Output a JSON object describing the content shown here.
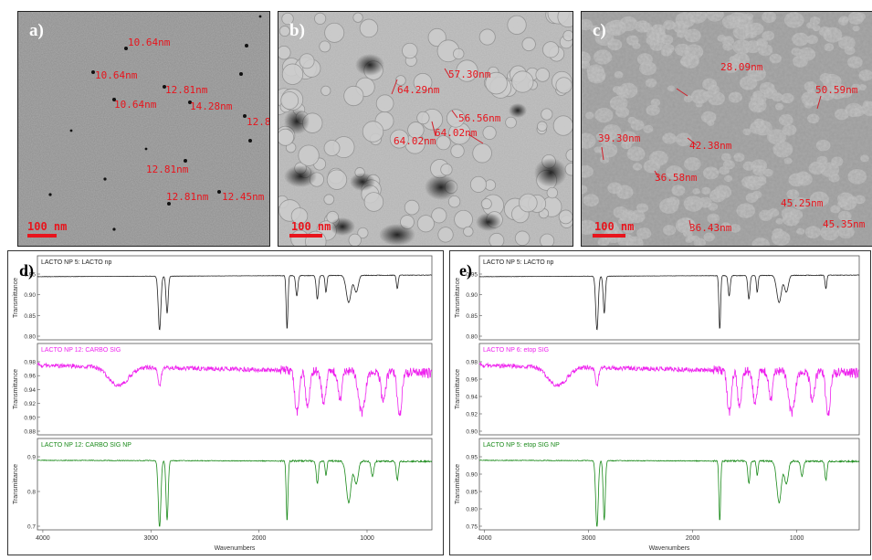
{
  "panels_top": [
    {
      "letter": "a)",
      "scale": "100 nm",
      "labels": [
        "10.64nm",
        "10.64nm",
        "12.81nm",
        "10.64nm",
        "14.28nm",
        "12.8",
        "12.81nm",
        "12.81nm",
        "12.45nm"
      ]
    },
    {
      "letter": "b)",
      "scale": "100 nm",
      "labels": [
        "57.30nm",
        "64.29nm",
        "56.56nm",
        "64.02nm",
        "64.02nm"
      ]
    },
    {
      "letter": "c)",
      "scale": "100 nm",
      "labels": [
        "28.09nm",
        "50.59nm",
        "39.30nm",
        "42.38nm",
        "36.58nm",
        "45.25nm",
        "36.43nm",
        "45.35nm"
      ]
    }
  ],
  "ir_panels": [
    {
      "letter": "d)",
      "xlabel": "Wavenumbers",
      "xticks": [
        "4000",
        "3000",
        "2000",
        "1000"
      ],
      "ylabel": "Transmittance",
      "spectra": [
        {
          "title": "LACTO NP 5: LACTO np",
          "color": "#222222",
          "yticks": [
            "0.95",
            "0.90",
            "0.85",
            "0.80"
          ]
        },
        {
          "title": "LACTO NP 12: CARBO SIG",
          "color": "#ee22ee",
          "yticks": [
            "0.98",
            "0.96",
            "0.94",
            "0.92",
            "0.90",
            "0.88"
          ]
        },
        {
          "title": "LACTO NP 12: CARBO SIG NP",
          "color": "#1a8a1a",
          "yticks": [
            "0.9",
            "0.8",
            "0.7"
          ]
        }
      ]
    },
    {
      "letter": "e)",
      "xlabel": "Wavenumbers",
      "xticks": [
        "4000",
        "3000",
        "2000",
        "1000"
      ],
      "ylabel": "Transmittance",
      "spectra": [
        {
          "title": "LACTO NP 5: LACTO np",
          "color": "#222222",
          "yticks": [
            "0.95",
            "0.90",
            "0.85",
            "0.80"
          ]
        },
        {
          "title": "LACTO NP 6: etop SIG",
          "color": "#ee22ee",
          "yticks": [
            "0.98",
            "0.96",
            "0.94",
            "0.92",
            "0.90"
          ]
        },
        {
          "title": "LACTO NP 5: etop SIG NP",
          "color": "#1a8a1a",
          "yticks": [
            "0.95",
            "0.90",
            "0.85",
            "0.80",
            "0.75"
          ]
        }
      ]
    }
  ]
}
